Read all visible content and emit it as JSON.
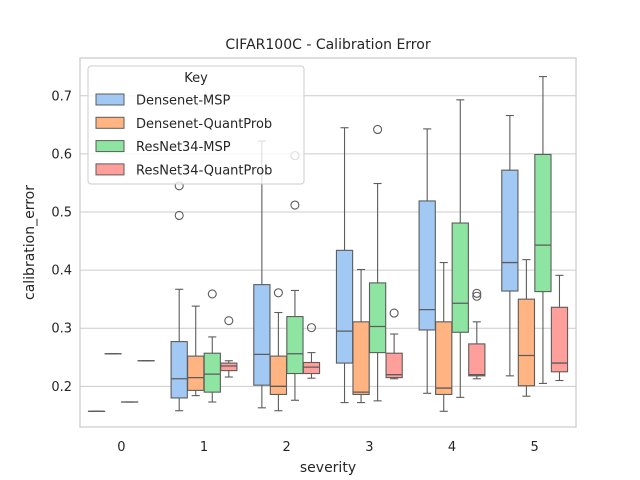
{
  "chart_data": {
    "type": "box",
    "title": "CIFAR100C - Calibration Error",
    "xlabel": "severity",
    "ylabel": "calibration_error",
    "categories": [
      "0",
      "1",
      "2",
      "3",
      "4",
      "5"
    ],
    "ylim": [
      0.13,
      0.765
    ],
    "yticks": [
      0.2,
      0.3,
      0.4,
      0.5,
      0.6,
      0.7
    ],
    "ytick_labels": [
      "0.2",
      "0.3",
      "0.4",
      "0.5",
      "0.6",
      "0.7"
    ],
    "grid": true,
    "legend": {
      "title": "Key",
      "position": "top-left"
    },
    "series": [
      {
        "name": "Densenet-MSP",
        "color": "#a1c9f4",
        "boxes": [
          {
            "min": 0.157,
            "q1": 0.157,
            "median": 0.157,
            "q3": 0.157,
            "max": 0.157,
            "outliers": []
          },
          {
            "min": 0.158,
            "q1": 0.18,
            "median": 0.213,
            "q3": 0.277,
            "max": 0.367,
            "outliers": [
              0.494,
              0.545
            ]
          },
          {
            "min": 0.163,
            "q1": 0.202,
            "median": 0.255,
            "q3": 0.375,
            "max": 0.622,
            "outliers": []
          },
          {
            "min": 0.172,
            "q1": 0.24,
            "median": 0.295,
            "q3": 0.434,
            "max": 0.645,
            "outliers": []
          },
          {
            "min": 0.188,
            "q1": 0.297,
            "median": 0.332,
            "q3": 0.519,
            "max": 0.643,
            "outliers": []
          },
          {
            "min": 0.218,
            "q1": 0.364,
            "median": 0.413,
            "q3": 0.572,
            "max": 0.666,
            "outliers": []
          }
        ]
      },
      {
        "name": "Densenet-QuantProb",
        "color": "#ffb482",
        "boxes": [
          {
            "min": 0.256,
            "q1": 0.256,
            "median": 0.256,
            "q3": 0.256,
            "max": 0.256,
            "outliers": []
          },
          {
            "min": 0.184,
            "q1": 0.193,
            "median": 0.215,
            "q3": 0.252,
            "max": 0.338,
            "outliers": []
          },
          {
            "min": 0.158,
            "q1": 0.186,
            "median": 0.2,
            "q3": 0.252,
            "max": 0.327,
            "outliers": [
              0.361
            ]
          },
          {
            "min": 0.172,
            "q1": 0.186,
            "median": 0.19,
            "q3": 0.311,
            "max": 0.401,
            "outliers": []
          },
          {
            "min": 0.157,
            "q1": 0.186,
            "median": 0.197,
            "q3": 0.311,
            "max": 0.413,
            "outliers": []
          },
          {
            "min": 0.183,
            "q1": 0.201,
            "median": 0.253,
            "q3": 0.35,
            "max": 0.418,
            "outliers": []
          }
        ]
      },
      {
        "name": "ResNet34-MSP",
        "color": "#8de5a1",
        "boxes": [
          {
            "min": 0.173,
            "q1": 0.173,
            "median": 0.173,
            "q3": 0.173,
            "max": 0.173,
            "outliers": []
          },
          {
            "min": 0.173,
            "q1": 0.19,
            "median": 0.221,
            "q3": 0.257,
            "max": 0.285,
            "outliers": [
              0.359
            ]
          },
          {
            "min": 0.176,
            "q1": 0.222,
            "median": 0.256,
            "q3": 0.32,
            "max": 0.365,
            "outliers": [
              0.512,
              0.597
            ]
          },
          {
            "min": 0.175,
            "q1": 0.258,
            "median": 0.303,
            "q3": 0.378,
            "max": 0.549,
            "outliers": [
              0.642
            ]
          },
          {
            "min": 0.181,
            "q1": 0.293,
            "median": 0.343,
            "q3": 0.481,
            "max": 0.693,
            "outliers": []
          },
          {
            "min": 0.205,
            "q1": 0.363,
            "median": 0.443,
            "q3": 0.599,
            "max": 0.733,
            "outliers": []
          }
        ]
      },
      {
        "name": "ResNet34-QuantProb",
        "color": "#ff9f9b",
        "boxes": [
          {
            "min": 0.244,
            "q1": 0.244,
            "median": 0.244,
            "q3": 0.244,
            "max": 0.244,
            "outliers": []
          },
          {
            "min": 0.216,
            "q1": 0.227,
            "median": 0.235,
            "q3": 0.24,
            "max": 0.244,
            "outliers": [
              0.313
            ]
          },
          {
            "min": 0.214,
            "q1": 0.222,
            "median": 0.233,
            "q3": 0.241,
            "max": 0.258,
            "outliers": [
              0.301
            ]
          },
          {
            "min": 0.213,
            "q1": 0.215,
            "median": 0.22,
            "q3": 0.257,
            "max": 0.29,
            "outliers": [
              0.326
            ]
          },
          {
            "min": 0.213,
            "q1": 0.218,
            "median": 0.22,
            "q3": 0.273,
            "max": 0.311,
            "outliers": [
              0.355,
              0.36
            ]
          },
          {
            "min": 0.21,
            "q1": 0.225,
            "median": 0.24,
            "q3": 0.336,
            "max": 0.391,
            "outliers": []
          }
        ]
      }
    ]
  }
}
